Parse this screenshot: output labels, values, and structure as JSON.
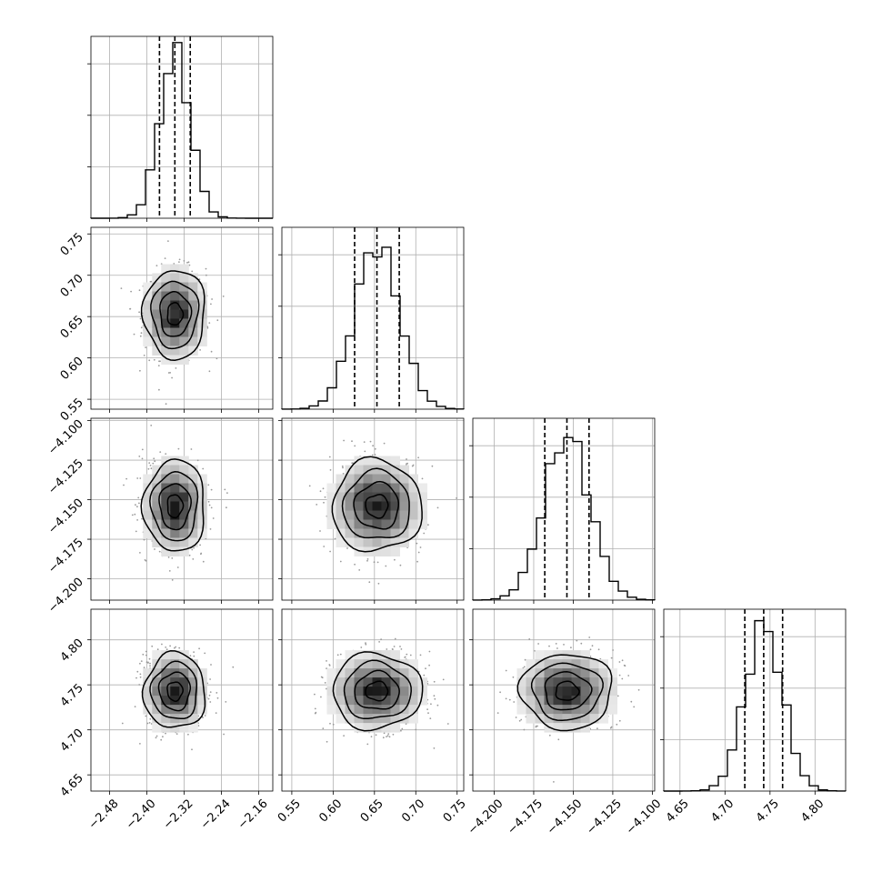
{
  "chart_data": {
    "type": "corner",
    "params": [
      {
        "mean": -2.34,
        "sd": 0.033,
        "range": [
          -2.52,
          -2.13
        ],
        "ticks": [
          "−2.48",
          "−2.40",
          "−2.32",
          "−2.24",
          "−2.16"
        ],
        "tick_values": [
          -2.48,
          -2.4,
          -2.32,
          -2.24,
          -2.16
        ],
        "quantiles": [
          -2.373,
          -2.34,
          -2.307
        ]
      },
      {
        "mean": 0.653,
        "sd": 0.027,
        "range": [
          0.538,
          0.758
        ],
        "ticks": [
          "0.55",
          "0.60",
          "0.65",
          "0.70",
          "0.75"
        ],
        "tick_values": [
          0.55,
          0.6,
          0.65,
          0.7,
          0.75
        ],
        "quantiles": [
          0.626,
          0.653,
          0.68
        ]
      },
      {
        "mean": -4.154,
        "sd": 0.0145,
        "range": [
          -4.2135,
          -4.0985
        ],
        "ticks": [
          "−4.100",
          "−4.125",
          "−4.150",
          "−4.175",
          "−4.200"
        ],
        "tick_values": [
          -4.1,
          -4.125,
          -4.15,
          -4.175,
          -4.2
        ],
        "quantiles": [
          -4.168,
          -4.154,
          -4.14
        ]
      },
      {
        "mean": 4.743,
        "sd": 0.021,
        "range": [
          4.632,
          4.834
        ],
        "ticks": [
          "4.65",
          "4.70",
          "4.75",
          "4.80"
        ],
        "tick_values": [
          4.65,
          4.7,
          4.75,
          4.8
        ],
        "quantiles": [
          4.722,
          4.743,
          4.764
        ]
      }
    ],
    "x_tick_labels_bottom": [
      [
        "−2.48",
        "−2.40",
        "−2.32",
        "−2.24",
        "−2.16"
      ],
      [
        "0.55",
        "0.60",
        "0.65",
        "0.70",
        "0.75"
      ],
      [
        "−4.200",
        "−4.175",
        "−4.150",
        "−4.125",
        "−4.100"
      ],
      [
        "4.65",
        "4.70",
        "4.75",
        "4.80"
      ]
    ],
    "y_tick_labels_left": [
      [
        "0.55",
        "0.60",
        "0.65",
        "0.70",
        "0.75"
      ],
      [
        "−4.200",
        "−4.175",
        "−4.150",
        "−4.125",
        "−4.100"
      ],
      [
        "4.65",
        "4.70",
        "4.75",
        "4.80"
      ]
    ],
    "contour_levels_sigma": [
      0.5,
      1.0,
      1.5,
      2.0
    ],
    "grid": true,
    "colors": {
      "line": "#000000",
      "grid": "#b0b0b0",
      "points": "#9a9a9a"
    }
  }
}
